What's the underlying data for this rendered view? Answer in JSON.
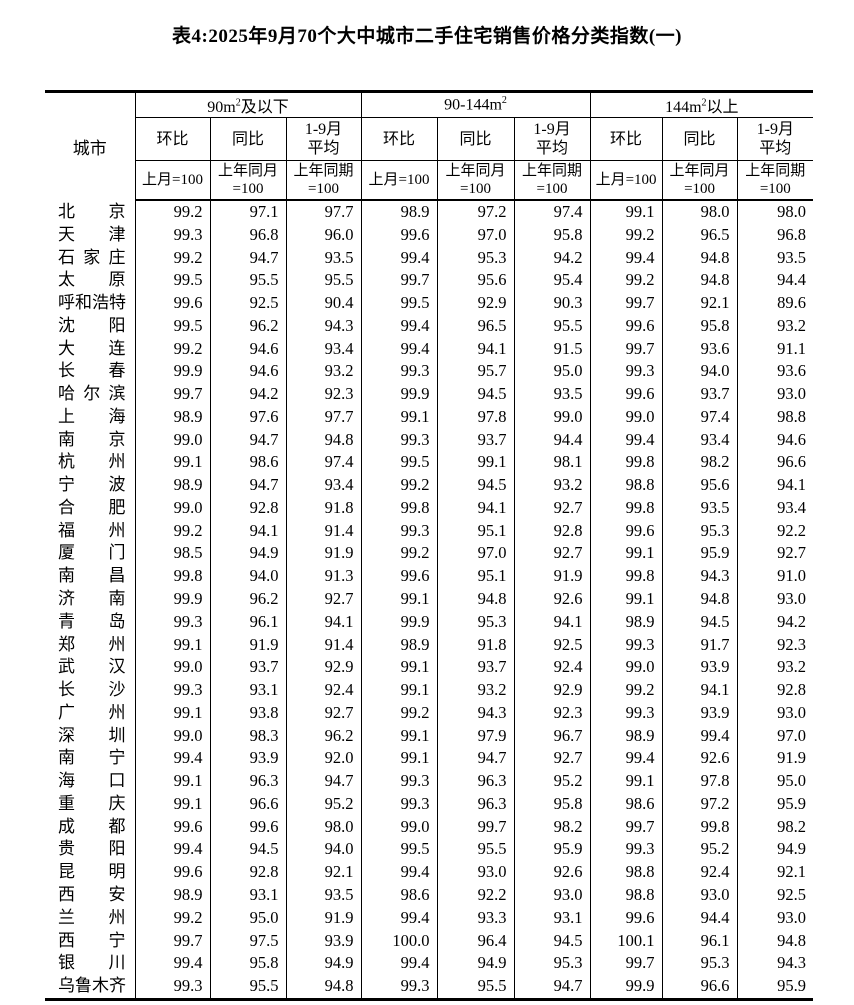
{
  "title": "表4:2025年9月70个大中城市二手住宅销售价格分类指数(一)",
  "table": {
    "city_header": "城市",
    "groups": [
      {
        "pre": "90m",
        "sup": "2",
        "post": "及以下"
      },
      {
        "pre": "90-144m",
        "sup": "2",
        "post": ""
      },
      {
        "pre": "144m",
        "sup": "2",
        "post": "以上"
      }
    ],
    "sub": [
      {
        "line1": "环比",
        "line2": ""
      },
      {
        "line1": "同比",
        "line2": ""
      },
      {
        "line1": "1-9月",
        "line2": "平均"
      }
    ],
    "base": [
      {
        "line1": "上月=100",
        "line2": ""
      },
      {
        "line1": "上年同月",
        "line2": "=100"
      },
      {
        "line1": "上年同期",
        "line2": "=100"
      }
    ]
  },
  "rows": [
    {
      "city": "北京",
      "values": [
        "99.2",
        "97.1",
        "97.7",
        "98.9",
        "97.2",
        "97.4",
        "99.1",
        "98.0",
        "98.0"
      ]
    },
    {
      "city": "天津",
      "values": [
        "99.3",
        "96.8",
        "96.0",
        "99.6",
        "97.0",
        "95.8",
        "99.2",
        "96.5",
        "96.8"
      ]
    },
    {
      "city": "石家庄",
      "values": [
        "99.2",
        "94.7",
        "93.5",
        "99.4",
        "95.3",
        "94.2",
        "99.4",
        "94.8",
        "93.5"
      ]
    },
    {
      "city": "太原",
      "values": [
        "99.5",
        "95.5",
        "95.5",
        "99.7",
        "95.6",
        "95.4",
        "99.2",
        "94.8",
        "94.4"
      ]
    },
    {
      "city": "呼和浩特",
      "values": [
        "99.6",
        "92.5",
        "90.4",
        "99.5",
        "92.9",
        "90.3",
        "99.7",
        "92.1",
        "89.6"
      ]
    },
    {
      "city": "沈阳",
      "values": [
        "99.5",
        "96.2",
        "94.3",
        "99.4",
        "96.5",
        "95.5",
        "99.6",
        "95.8",
        "93.2"
      ]
    },
    {
      "city": "大连",
      "values": [
        "99.2",
        "94.6",
        "93.4",
        "99.4",
        "94.1",
        "91.5",
        "99.7",
        "93.6",
        "91.1"
      ]
    },
    {
      "city": "长春",
      "values": [
        "99.9",
        "94.6",
        "93.2",
        "99.3",
        "95.7",
        "95.0",
        "99.3",
        "94.0",
        "93.6"
      ]
    },
    {
      "city": "哈尔滨",
      "values": [
        "99.7",
        "94.2",
        "92.3",
        "99.9",
        "94.5",
        "93.5",
        "99.6",
        "93.7",
        "93.0"
      ]
    },
    {
      "city": "上海",
      "values": [
        "98.9",
        "97.6",
        "97.7",
        "99.1",
        "97.8",
        "99.0",
        "99.0",
        "97.4",
        "98.8"
      ]
    },
    {
      "city": "南京",
      "values": [
        "99.0",
        "94.7",
        "94.8",
        "99.3",
        "93.7",
        "94.4",
        "99.4",
        "93.4",
        "94.6"
      ]
    },
    {
      "city": "杭州",
      "values": [
        "99.1",
        "98.6",
        "97.4",
        "99.5",
        "99.1",
        "98.1",
        "99.8",
        "98.2",
        "96.6"
      ]
    },
    {
      "city": "宁波",
      "values": [
        "98.9",
        "94.7",
        "93.4",
        "99.2",
        "94.5",
        "93.2",
        "98.8",
        "95.6",
        "94.1"
      ]
    },
    {
      "city": "合肥",
      "values": [
        "99.0",
        "92.8",
        "91.8",
        "99.8",
        "94.1",
        "92.7",
        "99.8",
        "93.5",
        "93.4"
      ]
    },
    {
      "city": "福州",
      "values": [
        "99.2",
        "94.1",
        "91.4",
        "99.3",
        "95.1",
        "92.8",
        "99.6",
        "95.3",
        "92.2"
      ]
    },
    {
      "city": "厦门",
      "values": [
        "98.5",
        "94.9",
        "91.9",
        "99.2",
        "97.0",
        "92.7",
        "99.1",
        "95.9",
        "92.7"
      ]
    },
    {
      "city": "南昌",
      "values": [
        "99.8",
        "94.0",
        "91.3",
        "99.6",
        "95.1",
        "91.9",
        "99.8",
        "94.3",
        "91.0"
      ]
    },
    {
      "city": "济南",
      "values": [
        "99.9",
        "96.2",
        "92.7",
        "99.1",
        "94.8",
        "92.6",
        "99.1",
        "94.8",
        "93.0"
      ]
    },
    {
      "city": "青岛",
      "values": [
        "99.3",
        "96.1",
        "94.1",
        "99.9",
        "95.3",
        "94.1",
        "98.9",
        "94.5",
        "94.2"
      ]
    },
    {
      "city": "郑州",
      "values": [
        "99.1",
        "91.9",
        "91.4",
        "98.9",
        "91.8",
        "92.5",
        "99.3",
        "91.7",
        "92.3"
      ]
    },
    {
      "city": "武汉",
      "values": [
        "99.0",
        "93.7",
        "92.9",
        "99.1",
        "93.7",
        "92.4",
        "99.0",
        "93.9",
        "93.2"
      ]
    },
    {
      "city": "长沙",
      "values": [
        "99.3",
        "93.1",
        "92.4",
        "99.1",
        "93.2",
        "92.9",
        "99.2",
        "94.1",
        "92.8"
      ]
    },
    {
      "city": "广州",
      "values": [
        "99.1",
        "93.8",
        "92.7",
        "99.2",
        "94.3",
        "92.3",
        "99.3",
        "93.9",
        "93.0"
      ]
    },
    {
      "city": "深圳",
      "values": [
        "99.0",
        "98.3",
        "96.2",
        "99.1",
        "97.9",
        "96.7",
        "98.9",
        "99.4",
        "97.0"
      ]
    },
    {
      "city": "南宁",
      "values": [
        "99.4",
        "93.9",
        "92.0",
        "99.1",
        "94.7",
        "92.7",
        "99.4",
        "92.6",
        "91.9"
      ]
    },
    {
      "city": "海口",
      "values": [
        "99.1",
        "96.3",
        "94.7",
        "99.3",
        "96.3",
        "95.2",
        "99.1",
        "97.8",
        "95.0"
      ]
    },
    {
      "city": "重庆",
      "values": [
        "99.1",
        "96.6",
        "95.2",
        "99.3",
        "96.3",
        "95.8",
        "98.6",
        "97.2",
        "95.9"
      ]
    },
    {
      "city": "成都",
      "values": [
        "99.6",
        "99.6",
        "98.0",
        "99.0",
        "99.7",
        "98.2",
        "99.7",
        "99.8",
        "98.2"
      ]
    },
    {
      "city": "贵阳",
      "values": [
        "99.4",
        "94.5",
        "94.0",
        "99.5",
        "95.5",
        "95.9",
        "99.3",
        "95.2",
        "94.9"
      ]
    },
    {
      "city": "昆明",
      "values": [
        "99.6",
        "92.8",
        "92.1",
        "99.4",
        "93.0",
        "92.6",
        "98.8",
        "92.4",
        "92.1"
      ]
    },
    {
      "city": "西安",
      "values": [
        "98.9",
        "93.1",
        "93.5",
        "98.6",
        "92.2",
        "93.0",
        "98.8",
        "93.0",
        "92.5"
      ]
    },
    {
      "city": "兰州",
      "values": [
        "99.2",
        "95.0",
        "91.9",
        "99.4",
        "93.3",
        "93.1",
        "99.6",
        "94.4",
        "93.0"
      ]
    },
    {
      "city": "西宁",
      "values": [
        "99.7",
        "97.5",
        "93.9",
        "100.0",
        "96.4",
        "94.5",
        "100.1",
        "96.1",
        "94.8"
      ]
    },
    {
      "city": "银川",
      "values": [
        "99.4",
        "95.8",
        "94.9",
        "99.4",
        "94.9",
        "95.3",
        "99.7",
        "95.3",
        "94.3"
      ]
    },
    {
      "city": "乌鲁木齐",
      "values": [
        "99.3",
        "95.5",
        "94.8",
        "99.3",
        "95.5",
        "94.7",
        "99.9",
        "96.6",
        "95.9"
      ]
    }
  ]
}
